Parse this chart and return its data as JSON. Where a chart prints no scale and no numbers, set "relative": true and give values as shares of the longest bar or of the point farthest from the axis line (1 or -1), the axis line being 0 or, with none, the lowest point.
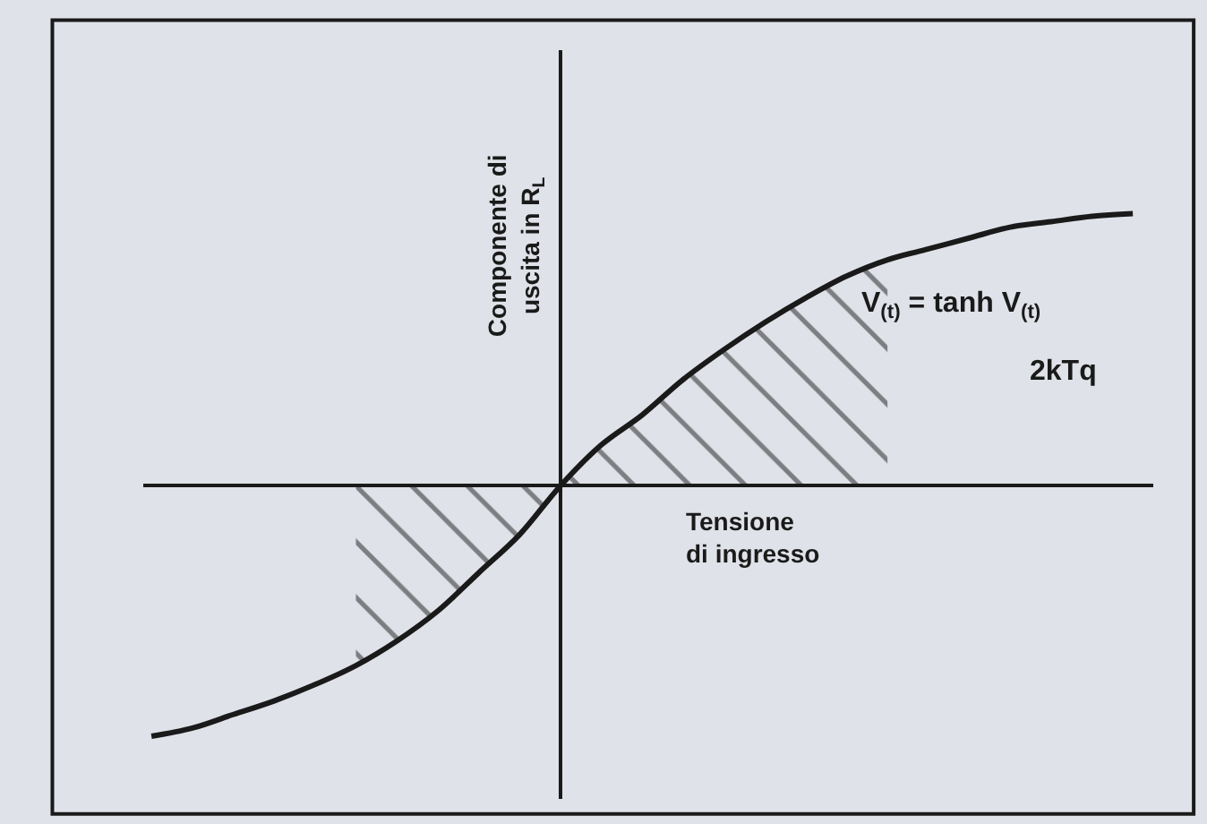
{
  "chart_data": {
    "type": "line",
    "relative": true,
    "xlabel": "Tensione di ingresso",
    "ylabel": "Componente di uscita in R$_{L}$",
    "categories": [
      null,
      null,
      null,
      null,
      null,
      null,
      null,
      null,
      null,
      null,
      null,
      null,
      null,
      null,
      null,
      null,
      null,
      null,
      null,
      null,
      null,
      null,
      null,
      null,
      null
    ],
    "series": [
      {
        "color": "#1a1a1a",
        "values": [
          -0.92,
          -0.89,
          -0.84,
          -0.79,
          -0.73,
          -0.66,
          -0.57,
          -0.46,
          -0.32,
          -0.18,
          0,
          0.15,
          0.26,
          0.39,
          0.5,
          0.6,
          0.69,
          0.77,
          0.83,
          0.87,
          0.91,
          0.95,
          0.97,
          0.99,
          1
        ]
      },
      {
        "type": "area",
        "color": "#1a1a1a",
        "values": [
          null,
          null,
          null,
          null,
          null,
          -0.66,
          -0.57,
          -0.46,
          -0.32,
          -0.18,
          0,
          null,
          null,
          null,
          null,
          null,
          null,
          null,
          null,
          null,
          null,
          null,
          null,
          null,
          null
        ]
      },
      {
        "type": "area",
        "color": "#1a1a1a",
        "values": [
          null,
          null,
          null,
          null,
          null,
          null,
          null,
          null,
          null,
          null,
          0,
          0.15,
          0.26,
          0.39,
          0.5,
          0.6,
          0.69,
          0.77,
          0.83,
          null,
          null,
          null,
          null,
          null,
          null
        ]
      }
    ],
    "annotations": [
      "V$_{(t)}$ = tanh V$_{(t)}$",
      "2kTq"
    ],
    "grid": false,
    "marker": "none",
    "line_style": "solid"
  }
}
